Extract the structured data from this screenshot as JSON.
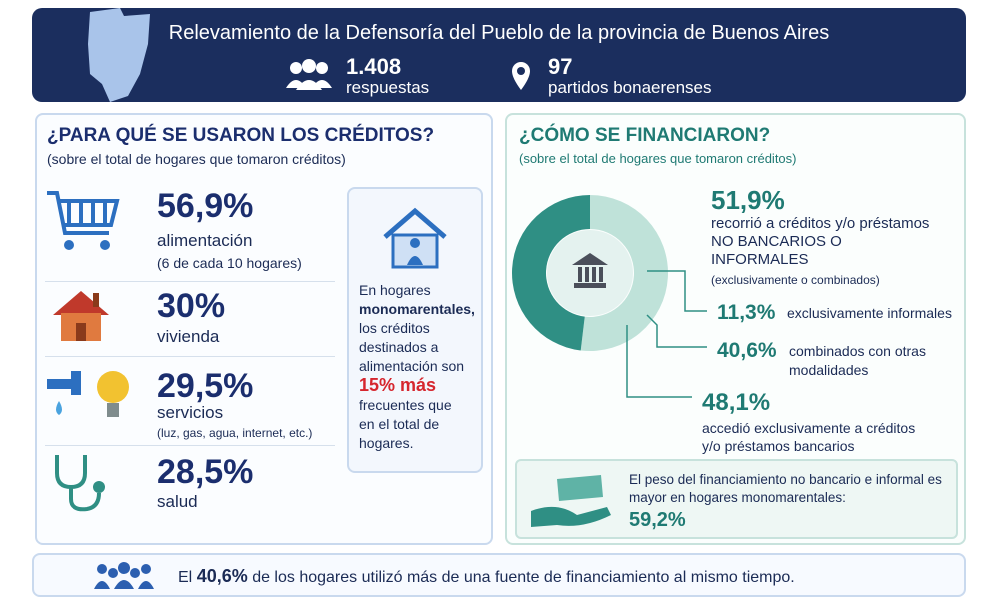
{
  "header": {
    "title": "Relevamiento de la Defensoría del Pueblo de la provincia de Buenos Aires",
    "stats": [
      {
        "value": "1.408",
        "label": "respuestas"
      },
      {
        "value": "97",
        "label": "partidos bonaerenses"
      }
    ]
  },
  "uses": {
    "title": "¿PARA QUÉ SE USARON LOS CRÉDITOS?",
    "subtitle": "(sobre el total de hogares que tomaron créditos)",
    "items": [
      {
        "value": "56,9%",
        "label": "alimentación",
        "note": "(6 de cada 10 hogares)"
      },
      {
        "value": "30%",
        "label": "vivienda"
      },
      {
        "value": "29,5%",
        "label": "servicios",
        "note": "(luz, gas, agua, internet, etc.)"
      },
      {
        "value": "28,5%",
        "label": "salud"
      }
    ],
    "callout": {
      "before": "En hogares",
      "bold": "monomarentales,",
      "middle": "los créditos destinados a alimentación",
      "lead": "son",
      "highlight": "15% más",
      "after": "frecuentes que en el total de hogares."
    }
  },
  "financing": {
    "title": "¿CÓMO SE FINANCIARON?",
    "subtitle": "(sobre el total de hogares que tomaron créditos)",
    "note": "(exclusivamente o combinados)",
    "breakdown": [
      {
        "value": "11,3%",
        "label": "exclusivamente informales"
      },
      {
        "value": "40,6%",
        "label": "combinados con otras modalidades"
      }
    ],
    "box": {
      "text": "El peso del financiamiento no bancario e informal es mayor en hogares monomarentales:",
      "value": "59,2%"
    }
  },
  "chart_data": {
    "type": "donut",
    "categories": [
      "recorrió a créditos y/o préstamos NO BANCARIOS O INFORMALES",
      "accedió exclusivamente a créditos y/o préstamos bancarios"
    ],
    "values": [
      51.9,
      48.1
    ],
    "value_labels": [
      "51,9%",
      "48,1%"
    ],
    "colors": [
      "#bfe2d9",
      "#2f8f84"
    ]
  },
  "footer": {
    "before": "El",
    "value": "40,6%",
    "after": "de los hogares utilizó más de una fuente de financiamiento al mismo tiempo."
  }
}
